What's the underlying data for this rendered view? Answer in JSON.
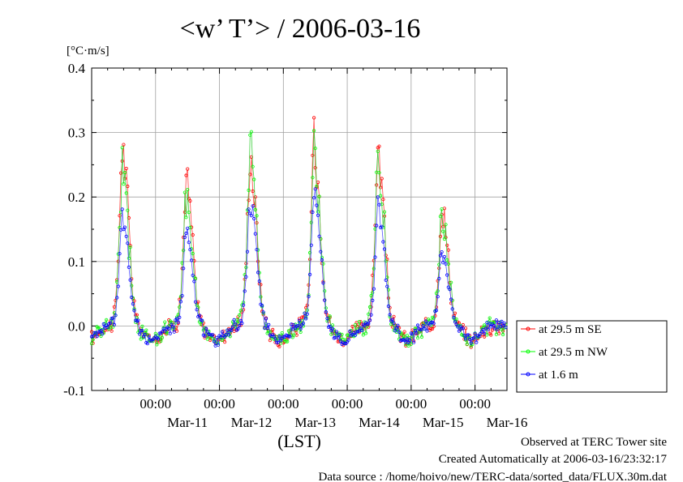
{
  "chart_data": {
    "type": "line",
    "title": "<w’ T’> / 2006-03-16",
    "y_unit": "[°C·m/s]",
    "xlabel": "(LST)",
    "ylim": [
      -0.1,
      0.4
    ],
    "yticks": [
      "0.4",
      "0.3",
      "0.2",
      "0.1",
      "0.0",
      "-0.1"
    ],
    "yvalues": [
      0.4,
      0.3,
      0.2,
      0.1,
      0.0,
      -0.1
    ],
    "xlim": [
      10.0,
      16.5
    ],
    "xticks": [
      {
        "day": 11,
        "time": "00:00",
        "date": "Mar-11"
      },
      {
        "day": 12,
        "time": "00:00",
        "date": "Mar-12"
      },
      {
        "day": 13,
        "time": "00:00",
        "date": "Mar-13"
      },
      {
        "day": 14,
        "time": "00:00",
        "date": "Mar-14"
      },
      {
        "day": 15,
        "time": "00:00",
        "date": "Mar-15"
      },
      {
        "day": 16,
        "time": "00:00",
        "date": "Mar-16"
      }
    ],
    "grid": true,
    "legend_position": "right",
    "series": [
      {
        "name": "at 29.5 m SE",
        "color": "#ff0000",
        "peaks": [
          0.31,
          0.25,
          0.29,
          0.32,
          0.3,
          0.205
        ]
      },
      {
        "name": "at 29.5 m NW",
        "color": "#00ff00",
        "peaks": [
          0.265,
          0.225,
          0.315,
          0.29,
          0.295,
          0.19
        ]
      },
      {
        "name": "at 1.6 m",
        "color": "#0000ff",
        "peaks": [
          0.19,
          0.16,
          0.215,
          0.24,
          0.21,
          0.13
        ]
      }
    ]
  },
  "footer": {
    "observed": "Observed at TERC Tower site",
    "created": "Created Automatically at 2006-03-16/23:32:17",
    "source": "Data source : /home/hoivo/new/TERC-data/sorted_data/FLUX.30m.dat"
  }
}
